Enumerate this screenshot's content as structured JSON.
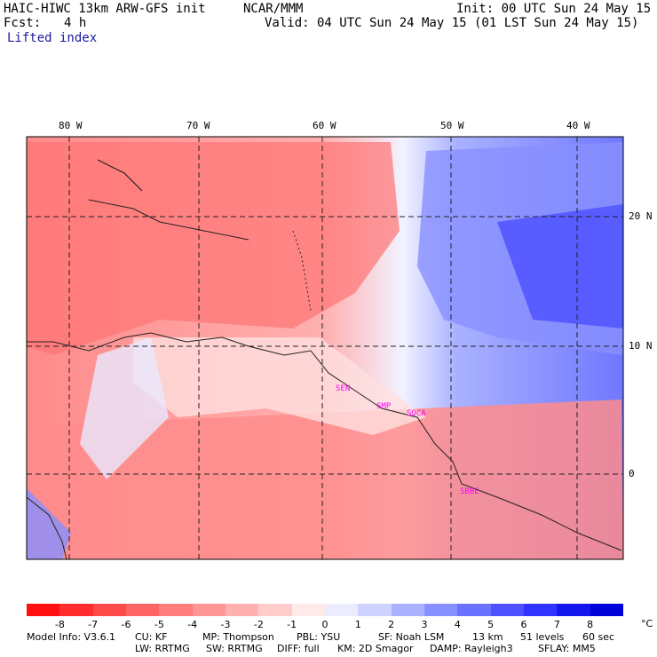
{
  "header": {
    "title_left": "HAIC-HIWC 13km ARW-GFS init",
    "org": "NCAR/MMM",
    "init": "Init: 00 UTC Sun 24 May 15",
    "fcst_label": "Fcst:",
    "fcst_value": "4 h",
    "valid": "Valid: 04 UTC Sun 24 May 15 (01 LST Sun 24 May 15)",
    "field": "Lifted index"
  },
  "axes": {
    "lon_labels": [
      "80 W",
      "70 W",
      "60 W",
      "50 W",
      "40 W"
    ],
    "lat_labels": [
      "20 N",
      "10 N",
      "0"
    ]
  },
  "stations": [
    "SEN",
    "SMP",
    "SOCA",
    "SBBE"
  ],
  "colorbar": {
    "labels": [
      "-8",
      "-7",
      "-6",
      "-5",
      "-4",
      "-3",
      "-2",
      "-1",
      "0",
      "1",
      "2",
      "3",
      "4",
      "5",
      "6",
      "7",
      "8"
    ],
    "unit": "°C",
    "colors": [
      "#ff0f0f",
      "#ff2d2d",
      "#ff4a4a",
      "#ff6464",
      "#ff7d7d",
      "#ff9696",
      "#ffb0b0",
      "#ffcccc",
      "#ffeaea",
      "#ececff",
      "#cdd2ff",
      "#aab2ff",
      "#8890ff",
      "#6a70ff",
      "#4c50ff",
      "#3033ff",
      "#1416ee",
      "#0000d8"
    ]
  },
  "footer": {
    "line1": [
      "Model Info: V3.6.1",
      "CU: KF",
      "MP: Thompson",
      "PBL: YSU",
      "SF: Noah LSM",
      "13 km",
      "51 levels",
      "60 sec"
    ],
    "line2": [
      "LW: RRTMG",
      "SW: RRTMG",
      "DIFF: full",
      "KM: 2D Smagor",
      "DAMP: Rayleigh3",
      "SFLAY: MM5"
    ]
  }
}
